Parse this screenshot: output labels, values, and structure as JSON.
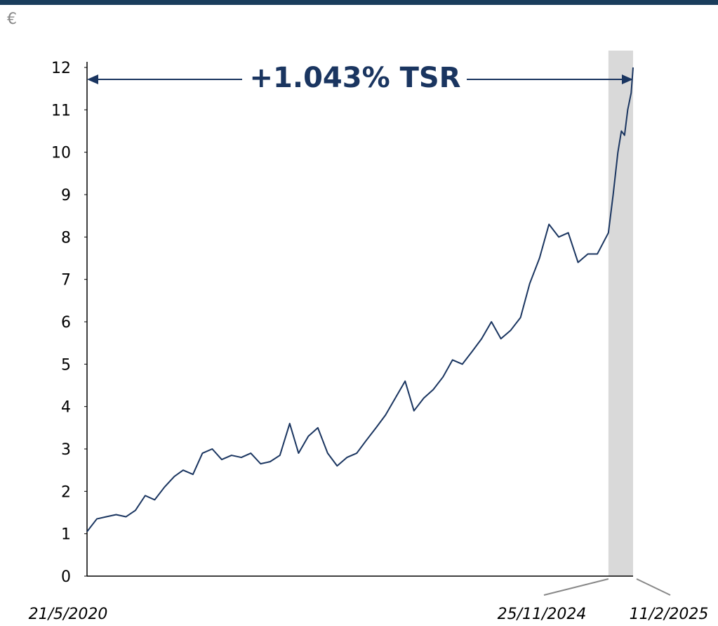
{
  "chart_data": {
    "type": "line",
    "unit": "€",
    "annotation": "+1.043% TSR",
    "x": [
      "2020-05-21",
      "2020-06-21",
      "2020-07-21",
      "2020-08-21",
      "2020-09-21",
      "2020-10-21",
      "2020-11-21",
      "2020-12-21",
      "2021-01-21",
      "2021-02-21",
      "2021-03-21",
      "2021-04-21",
      "2021-05-21",
      "2021-06-21",
      "2021-07-21",
      "2021-08-21",
      "2021-09-21",
      "2021-10-21",
      "2021-11-21",
      "2021-12-21",
      "2022-01-21",
      "2022-02-21",
      "2022-03-21",
      "2022-04-21",
      "2022-05-21",
      "2022-06-21",
      "2022-07-21",
      "2022-08-21",
      "2022-09-21",
      "2022-10-21",
      "2022-11-21",
      "2022-12-21",
      "2023-01-21",
      "2023-02-21",
      "2023-03-21",
      "2023-04-21",
      "2023-05-21",
      "2023-06-21",
      "2023-07-21",
      "2023-08-21",
      "2023-09-21",
      "2023-10-21",
      "2023-11-21",
      "2023-12-21",
      "2024-01-21",
      "2024-02-21",
      "2024-03-21",
      "2024-04-21",
      "2024-05-21",
      "2024-06-21",
      "2024-07-21",
      "2024-08-21",
      "2024-09-21",
      "2024-10-21",
      "2024-11-25",
      "2024-12-10",
      "2024-12-25",
      "2025-01-05",
      "2025-01-15",
      "2025-01-25",
      "2025-02-05",
      "2025-02-11"
    ],
    "series": [
      {
        "name": "TSR",
        "color": "#1a3560",
        "values": [
          1.05,
          1.35,
          1.4,
          1.45,
          1.4,
          1.55,
          1.9,
          1.8,
          2.1,
          2.35,
          2.5,
          2.4,
          2.9,
          3.0,
          2.75,
          2.85,
          2.8,
          2.9,
          2.65,
          2.7,
          2.85,
          3.6,
          2.9,
          3.3,
          3.5,
          2.9,
          2.6,
          2.8,
          2.9,
          3.2,
          3.5,
          3.8,
          4.2,
          4.6,
          3.9,
          4.2,
          4.4,
          4.7,
          5.1,
          5.0,
          5.3,
          5.6,
          6.0,
          5.6,
          5.8,
          6.1,
          6.9,
          7.5,
          8.3,
          8.0,
          8.1,
          7.4,
          7.6,
          7.6,
          8.1,
          9.0,
          10.0,
          10.5,
          10.4,
          11.0,
          11.4,
          12.0
        ]
      }
    ],
    "xlim": [
      "2020-05-21",
      "2025-02-11"
    ],
    "xticks": [
      {
        "value": "2020-05-21",
        "label": "21/5/2020"
      },
      {
        "value": "2024-11-25",
        "label": "25/11/2024"
      },
      {
        "value": "2025-02-11",
        "label": "11/2/2025"
      }
    ],
    "highlight": [
      "2024-11-25",
      "2025-02-11"
    ],
    "highlight_color": "#d9d9d9",
    "ylim": [
      0,
      12
    ],
    "yticks": [
      0,
      1,
      2,
      3,
      4,
      5,
      6,
      7,
      8,
      9,
      10,
      11,
      12
    ]
  }
}
